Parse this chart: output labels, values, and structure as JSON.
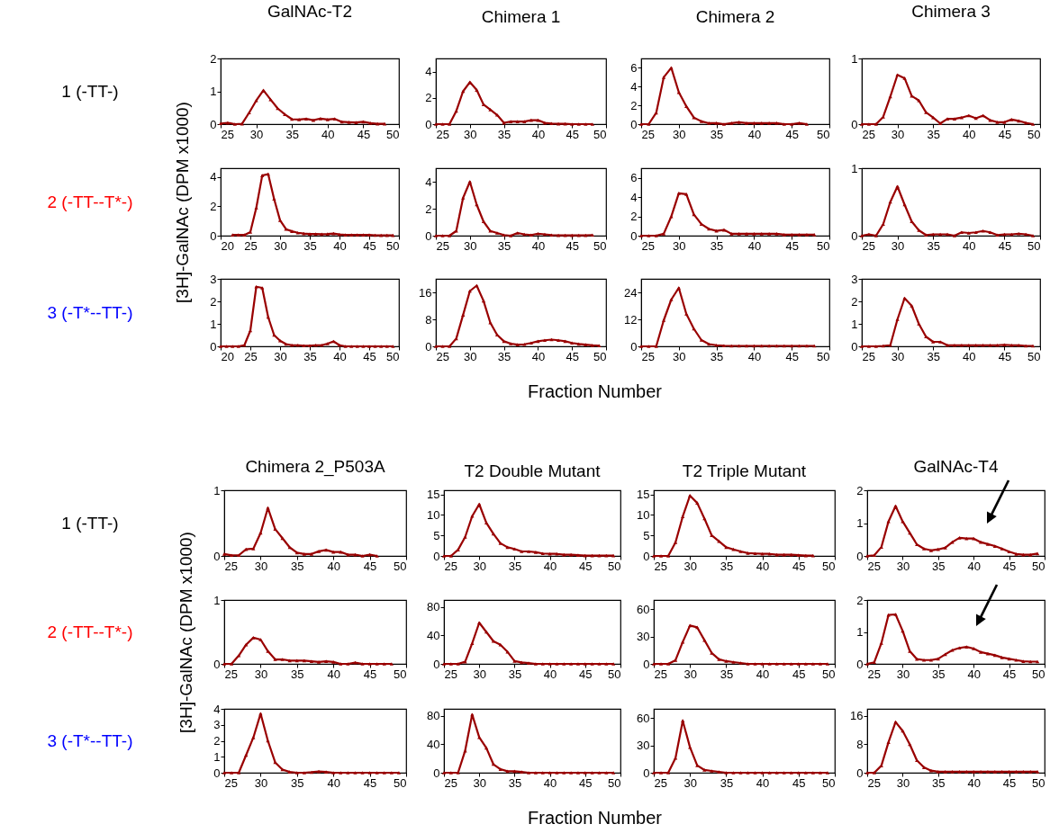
{
  "chart_data": [
    {
      "type": "line",
      "title": "GalNAc-T2",
      "annotations": [
        "1 (-TT-)"
      ],
      "x": [
        25,
        26,
        27,
        28,
        29,
        30,
        31,
        32,
        33,
        34,
        35,
        36,
        37,
        38,
        39,
        40,
        41,
        42,
        43,
        44,
        45,
        46,
        47,
        48
      ],
      "series": [
        {
          "color": "#990000",
          "values": [
            0.02,
            0.04,
            0,
            0.01,
            0.35,
            0.72,
            1.03,
            0.75,
            0.48,
            0.3,
            0.15,
            0.14,
            0.16,
            0.12,
            0.17,
            0.14,
            0.16,
            0.07,
            0.06,
            0.05,
            0.07,
            0.03,
            0.01,
            0.01
          ]
        }
      ],
      "xlim": [
        25,
        50
      ],
      "xticks": [
        25,
        30,
        35,
        40,
        45,
        50
      ],
      "ylim": [
        0,
        2
      ],
      "yticks": [
        0,
        1,
        2
      ],
      "marker": "triangle"
    },
    {
      "type": "line",
      "title": "Chimera 1",
      "x": [
        25,
        26,
        27,
        28,
        29,
        30,
        31,
        32,
        33,
        34,
        35,
        36,
        37,
        38,
        39,
        40,
        41,
        42,
        43,
        44,
        45,
        46,
        47,
        48
      ],
      "series": [
        {
          "color": "#990000",
          "values": [
            0,
            0,
            0,
            1,
            2.5,
            3.2,
            2.6,
            1.5,
            1.1,
            0.7,
            0.1,
            0.2,
            0.2,
            0.2,
            0.3,
            0.3,
            0.1,
            0.05,
            0.02,
            0.02,
            0,
            0,
            0,
            0
          ]
        }
      ],
      "xlim": [
        25,
        50
      ],
      "xticks": [
        25,
        30,
        35,
        40,
        45,
        50
      ],
      "ylim": [
        0,
        5
      ],
      "yticks": [
        0,
        2,
        4
      ],
      "marker": "triangle"
    },
    {
      "type": "line",
      "title": "Chimera 2",
      "x": [
        25,
        26,
        27,
        28,
        29,
        30,
        31,
        32,
        33,
        34,
        35,
        36,
        37,
        38,
        39,
        40,
        41,
        42,
        43,
        44,
        45,
        46,
        47
      ],
      "series": [
        {
          "color": "#990000",
          "values": [
            0,
            0,
            1.2,
            5,
            6,
            3.4,
            1.9,
            0.7,
            0.3,
            0.1,
            0.1,
            0,
            0.1,
            0.2,
            0.1,
            0.1,
            0.1,
            0.1,
            0.1,
            0,
            0,
            0.1,
            0
          ]
        }
      ],
      "xlim": [
        25,
        50
      ],
      "xticks": [
        25,
        30,
        35,
        40,
        45,
        50
      ],
      "ylim": [
        0,
        7
      ],
      "yticks": [
        0,
        2,
        4,
        6
      ],
      "marker": "triangle"
    },
    {
      "type": "line",
      "title": "Chimera 3",
      "x": [
        25,
        26,
        27,
        28,
        29,
        30,
        31,
        32,
        33,
        34,
        35,
        36,
        37,
        38,
        39,
        40,
        41,
        42,
        43,
        44,
        45,
        46,
        47,
        48,
        49
      ],
      "series": [
        {
          "color": "#990000",
          "values": [
            0,
            0,
            0,
            0.11,
            0.42,
            0.75,
            0.7,
            0.43,
            0.36,
            0.18,
            0.1,
            0.01,
            0.08,
            0.08,
            0.1,
            0.13,
            0.09,
            0.13,
            0.06,
            0.03,
            0.03,
            0.07,
            0.05,
            0.02,
            0
          ]
        }
      ],
      "xlim": [
        25,
        50
      ],
      "xticks": [
        25,
        30,
        35,
        40,
        45,
        50
      ],
      "ylim": [
        0,
        1
      ],
      "yticks": [
        0,
        1
      ],
      "marker": "triangle"
    },
    {
      "type": "line",
      "ylabel": "[3H]-GalNAc (DPM x1000)",
      "annotations": [
        "2 (-TT--T*-)"
      ],
      "x": [
        22,
        23,
        24,
        25,
        26,
        27,
        28,
        29,
        30,
        31,
        32,
        33,
        34,
        35,
        36,
        37,
        38,
        39,
        40,
        41,
        42,
        43,
        44,
        45,
        46,
        47,
        48,
        49
      ],
      "series": [
        {
          "color": "#990000",
          "values": [
            0.05,
            0.05,
            0.05,
            0.25,
            1.9,
            4.1,
            4.2,
            2.5,
            1.05,
            0.45,
            0.3,
            0.2,
            0.15,
            0.12,
            0.12,
            0.1,
            0.12,
            0.15,
            0.08,
            0.05,
            0.05,
            0.05,
            0.05,
            0.05,
            0.03,
            0.02,
            0.02,
            0.02
          ]
        }
      ],
      "xlim": [
        20,
        50
      ],
      "xticks": [
        20,
        25,
        30,
        35,
        40,
        45,
        50
      ],
      "ylim": [
        0,
        4.6
      ],
      "yticks": [
        0,
        2,
        4
      ],
      "marker": "triangle"
    },
    {
      "type": "line",
      "x": [
        25,
        26,
        27,
        28,
        29,
        30,
        31,
        32,
        33,
        34,
        35,
        36,
        37,
        38,
        39,
        40,
        41,
        42,
        43,
        44,
        45,
        46,
        47,
        48
      ],
      "series": [
        {
          "color": "#990000",
          "values": [
            0,
            0,
            0,
            0.35,
            2.8,
            4,
            2.3,
            1.05,
            0.35,
            0.2,
            0.05,
            0,
            0.2,
            0.1,
            0.05,
            0.15,
            0.1,
            0.05,
            0.03,
            0.02,
            0.02,
            0.02,
            0.03,
            0.05
          ]
        }
      ],
      "xlim": [
        25,
        50
      ],
      "xticks": [
        25,
        30,
        35,
        40,
        45,
        50
      ],
      "ylim": [
        0,
        5
      ],
      "yticks": [
        0,
        2,
        4
      ],
      "marker": "triangle"
    },
    {
      "type": "line",
      "x": [
        25,
        26,
        27,
        28,
        29,
        30,
        31,
        32,
        33,
        34,
        35,
        36,
        37,
        38,
        39,
        40,
        41,
        42,
        43,
        44,
        45,
        46,
        47,
        48
      ],
      "series": [
        {
          "color": "#990000",
          "values": [
            0,
            0,
            0,
            0.2,
            2,
            4.4,
            4.3,
            2.2,
            1.2,
            0.7,
            0.5,
            0.6,
            0.2,
            0.2,
            0.2,
            0.2,
            0.2,
            0.2,
            0.2,
            0.1,
            0.1,
            0.1,
            0.1,
            0.1
          ]
        }
      ],
      "xlim": [
        25,
        50
      ],
      "xticks": [
        25,
        30,
        35,
        40,
        45,
        50
      ],
      "ylim": [
        0,
        7
      ],
      "yticks": [
        0,
        2,
        4,
        6
      ],
      "marker": "triangle"
    },
    {
      "type": "line",
      "x": [
        25,
        26,
        27,
        28,
        29,
        30,
        31,
        32,
        33,
        34,
        35,
        36,
        37,
        38,
        39,
        40,
        41,
        42,
        43,
        44,
        45,
        46,
        47,
        48,
        49
      ],
      "series": [
        {
          "color": "#990000",
          "values": [
            0,
            0.02,
            0,
            0.17,
            0.5,
            0.73,
            0.46,
            0.21,
            0.08,
            0.01,
            0.02,
            0.02,
            0.02,
            0,
            0.05,
            0.04,
            0.05,
            0.07,
            0.05,
            0.01,
            0.02,
            0.02,
            0.03,
            0.02,
            0
          ]
        }
      ],
      "xlim": [
        25,
        50
      ],
      "xticks": [
        25,
        30,
        35,
        40,
        45,
        50
      ],
      "ylim": [
        0,
        1
      ],
      "yticks": [
        0,
        1
      ],
      "marker": "triangle"
    },
    {
      "type": "line",
      "annotations": [
        "3 (-T*--TT-)"
      ],
      "x": [
        20,
        21,
        22,
        23,
        24,
        25,
        26,
        27,
        28,
        29,
        30,
        31,
        32,
        33,
        34,
        35,
        36,
        37,
        38,
        39,
        40,
        41,
        42,
        43,
        44,
        45,
        46,
        47,
        48,
        49
      ],
      "series": [
        {
          "color": "#990000",
          "values": [
            0,
            0,
            0,
            0,
            0.05,
            0.7,
            2.65,
            2.6,
            1.3,
            0.5,
            0.25,
            0.1,
            0.05,
            0.05,
            0.03,
            0.03,
            0.05,
            0.05,
            0.12,
            0.22,
            0.05,
            0,
            0,
            0,
            0,
            0,
            0,
            0,
            0,
            0
          ]
        }
      ],
      "xlim": [
        20,
        50
      ],
      "xticks": [
        20,
        25,
        30,
        35,
        40,
        45,
        50
      ],
      "ylim": [
        0,
        3
      ],
      "yticks": [
        0,
        1,
        2,
        3
      ],
      "marker": "triangle"
    },
    {
      "type": "line",
      "xlabel": "Fraction Number",
      "x": [
        25,
        26,
        27,
        28,
        29,
        30,
        31,
        32,
        33,
        34,
        35,
        36,
        37,
        38,
        39,
        40,
        41,
        42,
        43,
        44,
        45,
        46,
        47,
        48,
        49
      ],
      "series": [
        {
          "color": "#990000",
          "values": [
            0,
            0,
            0,
            2.3,
            9.3,
            16.4,
            18,
            13.5,
            7,
            3.4,
            1.5,
            0.8,
            0.5,
            0.6,
            1,
            1.5,
            1.8,
            2,
            1.8,
            1.5,
            1,
            0.7,
            0.5,
            0.3,
            0.2
          ]
        }
      ],
      "xlim": [
        25,
        50
      ],
      "xticks": [
        25,
        30,
        35,
        40,
        45,
        50
      ],
      "ylim": [
        0,
        20
      ],
      "yticks": [
        0,
        8,
        16
      ],
      "marker": "triangle"
    },
    {
      "type": "line",
      "x": [
        25,
        26,
        27,
        28,
        29,
        30,
        31,
        32,
        33,
        34,
        35,
        36,
        37,
        38,
        39,
        40,
        41,
        42,
        43,
        44,
        45,
        46,
        47,
        48
      ],
      "series": [
        {
          "color": "#990000",
          "values": [
            0,
            0,
            0,
            11.6,
            20.8,
            26,
            14.4,
            7.8,
            2.8,
            1,
            0.5,
            0.3,
            0.2,
            0.2,
            0.2,
            0.2,
            0.2,
            0.2,
            0.2,
            0.2,
            0.2,
            0.2,
            0.2,
            0.2
          ]
        }
      ],
      "xlim": [
        25,
        50
      ],
      "xticks": [
        25,
        30,
        35,
        40,
        45,
        50
      ],
      "ylim": [
        0,
        30
      ],
      "yticks": [
        0,
        12,
        24
      ],
      "marker": "triangle"
    },
    {
      "type": "line",
      "x": [
        25,
        26,
        27,
        28,
        29,
        30,
        31,
        32,
        33,
        34,
        35,
        36,
        37,
        38,
        39,
        40,
        41,
        42,
        43,
        44,
        45,
        46,
        47,
        48,
        49
      ],
      "series": [
        {
          "color": "#990000",
          "values": [
            0,
            0,
            0,
            0.02,
            0.05,
            1.2,
            2.14,
            1.8,
            1,
            0.43,
            0.2,
            0.2,
            0.05,
            0.05,
            0.05,
            0.05,
            0.05,
            0.05,
            0.05,
            0.05,
            0.07,
            0.05,
            0.05,
            0.02,
            0.02
          ]
        }
      ],
      "xlim": [
        25,
        50
      ],
      "xticks": [
        25,
        30,
        35,
        40,
        45,
        50
      ],
      "ylim": [
        0,
        3
      ],
      "yticks": [
        0,
        1,
        2,
        3
      ],
      "marker": "triangle"
    },
    {
      "type": "line",
      "title": "Chimera 2_P503A",
      "annotations": [
        "1 (-TT-)"
      ],
      "x": [
        25,
        26,
        27,
        28,
        29,
        30,
        31,
        32,
        33,
        34,
        35,
        36,
        37,
        38,
        39,
        40,
        41,
        42,
        43,
        44,
        45,
        46
      ],
      "series": [
        {
          "color": "#990000",
          "values": [
            0.03,
            0.01,
            0.01,
            0.1,
            0.11,
            0.35,
            0.73,
            0.41,
            0.27,
            0.13,
            0.05,
            0.03,
            0.03,
            0.07,
            0.09,
            0.06,
            0.06,
            0.02,
            0.02,
            0,
            0.02,
            0
          ]
        }
      ],
      "xlim": [
        25,
        50
      ],
      "xticks": [
        25,
        30,
        35,
        40,
        45,
        50
      ],
      "ylim": [
        0,
        1
      ],
      "yticks": [
        0,
        1
      ],
      "marker": "triangle"
    },
    {
      "type": "line",
      "title": "T2 Double Mutant",
      "x": [
        25,
        26,
        27,
        28,
        29,
        30,
        31,
        32,
        33,
        34,
        35,
        36,
        37,
        38,
        39,
        40,
        41,
        42,
        43,
        44,
        45,
        46,
        47,
        48,
        49
      ],
      "series": [
        {
          "color": "#990000",
          "values": [
            0,
            0,
            1.5,
            4.6,
            9.7,
            12.6,
            8.1,
            5.4,
            3.1,
            2.1,
            1.7,
            1.1,
            1.1,
            0.9,
            0.6,
            0.5,
            0.5,
            0.3,
            0.3,
            0.2,
            0.1,
            0.1,
            0.1,
            0.1,
            0.1
          ]
        }
      ],
      "xlim": [
        25,
        50
      ],
      "xticks": [
        25,
        30,
        35,
        40,
        45,
        50
      ],
      "ylim": [
        0,
        16
      ],
      "yticks": [
        0,
        5,
        10,
        15
      ],
      "marker": "triangle"
    },
    {
      "type": "line",
      "title": "T2 Triple Mutant",
      "x": [
        25,
        26,
        27,
        28,
        29,
        30,
        31,
        32,
        33,
        34,
        35,
        36,
        37,
        38,
        39,
        40,
        41,
        42,
        43,
        44,
        45,
        46,
        47
      ],
      "series": [
        {
          "color": "#990000",
          "values": [
            0,
            0,
            0,
            3.3,
            9.6,
            14.7,
            12.9,
            9.1,
            5,
            3.6,
            2.1,
            1.6,
            1.1,
            0.7,
            0.6,
            0.5,
            0.5,
            0.3,
            0.3,
            0.3,
            0.2,
            0.1,
            0.1
          ]
        }
      ],
      "xlim": [
        25,
        50
      ],
      "xticks": [
        25,
        30,
        35,
        40,
        45,
        50
      ],
      "ylim": [
        0,
        16
      ],
      "yticks": [
        0,
        5,
        10,
        15
      ],
      "marker": "triangle"
    },
    {
      "type": "line",
      "title": "GalNAc-T4",
      "x": [
        25,
        26,
        27,
        28,
        29,
        30,
        31,
        32,
        33,
        34,
        35,
        36,
        37,
        38,
        39,
        40,
        41,
        42,
        43,
        44,
        45,
        46,
        47,
        48,
        49
      ],
      "series": [
        {
          "color": "#990000",
          "values": [
            0,
            0.02,
            0.27,
            1.05,
            1.52,
            1.05,
            0.7,
            0.35,
            0.22,
            0.17,
            0.2,
            0.25,
            0.42,
            0.55,
            0.53,
            0.53,
            0.42,
            0.36,
            0.3,
            0.22,
            0.13,
            0.06,
            0.04,
            0.04,
            0.07
          ]
        }
      ],
      "xlim": [
        25,
        50
      ],
      "xticks": [
        25,
        30,
        35,
        40,
        45,
        50
      ],
      "ylim": [
        0,
        2
      ],
      "yticks": [
        0,
        1,
        2
      ],
      "marker": "triangle"
    },
    {
      "type": "line",
      "ylabel": "[3H]-GalNAc (DPM x1000)",
      "annotations": [
        "2 (-TT--T*-)"
      ],
      "x": [
        25,
        26,
        27,
        28,
        29,
        30,
        31,
        32,
        33,
        34,
        35,
        36,
        37,
        38,
        39,
        40,
        41,
        42,
        43,
        44,
        45,
        46,
        47,
        48
      ],
      "series": [
        {
          "color": "#990000",
          "values": [
            0,
            0,
            0.13,
            0.3,
            0.41,
            0.38,
            0.2,
            0.07,
            0.07,
            0.05,
            0.05,
            0.05,
            0.04,
            0.03,
            0.04,
            0.03,
            0,
            0,
            0.02,
            0,
            0,
            0,
            0,
            0
          ]
        }
      ],
      "xlim": [
        25,
        50
      ],
      "xticks": [
        25,
        30,
        35,
        40,
        45,
        50
      ],
      "ylim": [
        0,
        1
      ],
      "yticks": [
        0,
        1
      ],
      "marker": "triangle"
    },
    {
      "type": "line",
      "x": [
        25,
        26,
        27,
        28,
        29,
        30,
        31,
        32,
        33,
        34,
        35,
        36,
        37,
        38,
        39,
        40,
        41,
        42,
        43,
        44,
        45,
        46,
        47,
        48,
        49
      ],
      "series": [
        {
          "color": "#990000",
          "values": [
            0,
            0,
            0,
            3,
            29,
            58,
            45,
            32,
            27,
            17,
            4,
            2,
            1,
            0,
            0,
            0,
            0,
            0,
            0,
            0,
            0,
            0,
            0,
            0,
            0
          ]
        }
      ],
      "xlim": [
        25,
        50
      ],
      "xticks": [
        25,
        30,
        35,
        40,
        45,
        50
      ],
      "ylim": [
        0,
        90
      ],
      "yticks": [
        0,
        40,
        80
      ],
      "marker": "triangle"
    },
    {
      "type": "line",
      "x": [
        25,
        26,
        27,
        28,
        29,
        30,
        31,
        32,
        33,
        34,
        35,
        36,
        37,
        38,
        39,
        40,
        41,
        42,
        43,
        44,
        45,
        46,
        47,
        48,
        49
      ],
      "series": [
        {
          "color": "#990000",
          "values": [
            0,
            0,
            0,
            4,
            24,
            42,
            40,
            26,
            12,
            5,
            3,
            2,
            1,
            0,
            0,
            0,
            0,
            0,
            0,
            0,
            0,
            0,
            0,
            0,
            0
          ]
        }
      ],
      "xlim": [
        25,
        50
      ],
      "xticks": [
        25,
        30,
        35,
        40,
        45,
        50
      ],
      "ylim": [
        0,
        70
      ],
      "yticks": [
        0,
        30,
        60
      ],
      "marker": "triangle"
    },
    {
      "type": "line",
      "x": [
        25,
        26,
        27,
        28,
        29,
        30,
        31,
        32,
        33,
        34,
        35,
        36,
        37,
        38,
        39,
        40,
        41,
        42,
        43,
        44,
        45,
        46,
        47,
        48,
        49
      ],
      "series": [
        {
          "color": "#990000",
          "values": [
            0,
            0.05,
            0.65,
            1.53,
            1.55,
            1.03,
            0.4,
            0.15,
            0.12,
            0.12,
            0.16,
            0.3,
            0.43,
            0.5,
            0.53,
            0.48,
            0.37,
            0.32,
            0.27,
            0.2,
            0.16,
            0.12,
            0.08,
            0.07,
            0.07
          ]
        }
      ],
      "xlim": [
        25,
        50
      ],
      "xticks": [
        25,
        30,
        35,
        40,
        45,
        50
      ],
      "ylim": [
        0,
        2
      ],
      "yticks": [
        0,
        1,
        2
      ],
      "marker": "triangle"
    },
    {
      "type": "line",
      "annotations": [
        "3 (-T*--TT-)"
      ],
      "x": [
        25,
        26,
        27,
        28,
        29,
        30,
        31,
        32,
        33,
        34,
        35,
        36,
        37,
        38,
        39,
        40,
        41,
        42,
        43,
        44,
        45,
        46,
        47,
        48,
        49
      ],
      "series": [
        {
          "color": "#990000",
          "values": [
            0,
            0,
            0,
            1.1,
            2.2,
            3.7,
            2,
            0.65,
            0.2,
            0.05,
            0,
            0,
            0.03,
            0.08,
            0.05,
            0,
            0,
            0,
            0,
            0,
            0,
            0,
            0,
            0,
            0
          ]
        }
      ],
      "xlim": [
        25,
        50
      ],
      "xticks": [
        25,
        30,
        35,
        40,
        45,
        50
      ],
      "ylim": [
        0,
        4
      ],
      "yticks": [
        0,
        1,
        2,
        3,
        4
      ],
      "marker": "triangle"
    },
    {
      "type": "line",
      "xlabel": "Fraction Number",
      "x": [
        25,
        26,
        27,
        28,
        29,
        30,
        31,
        32,
        33,
        34,
        35,
        36,
        37,
        38,
        39,
        40,
        41,
        42,
        43,
        44,
        45,
        46,
        47,
        48,
        49
      ],
      "series": [
        {
          "color": "#990000",
          "values": [
            0,
            0,
            0,
            31,
            82,
            50,
            35,
            12,
            5,
            2,
            2,
            1,
            0,
            0,
            0,
            0,
            0,
            0,
            0,
            0,
            0,
            0,
            0,
            0,
            0
          ]
        }
      ],
      "xlim": [
        25,
        50
      ],
      "xticks": [
        25,
        30,
        35,
        40,
        45,
        50
      ],
      "ylim": [
        0,
        90
      ],
      "yticks": [
        0,
        40,
        80
      ],
      "marker": "triangle"
    },
    {
      "type": "line",
      "x": [
        25,
        26,
        27,
        28,
        29,
        30,
        31,
        32,
        33,
        34,
        35,
        36,
        37,
        38,
        39,
        40,
        41,
        42,
        43,
        44,
        45,
        46,
        47,
        48,
        49
      ],
      "series": [
        {
          "color": "#990000",
          "values": [
            0,
            0,
            0,
            16,
            57,
            28,
            8,
            3,
            2,
            1,
            0,
            0,
            0,
            0,
            0,
            0,
            0,
            0,
            0,
            0,
            0,
            0,
            0,
            0,
            0
          ]
        }
      ],
      "xlim": [
        25,
        50
      ],
      "xticks": [
        25,
        30,
        35,
        40,
        45,
        50
      ],
      "ylim": [
        0,
        70
      ],
      "yticks": [
        0,
        30,
        60
      ],
      "marker": "triangle"
    },
    {
      "type": "line",
      "x": [
        25,
        26,
        27,
        28,
        29,
        30,
        31,
        32,
        33,
        34,
        35,
        36,
        37,
        38,
        39,
        40,
        41,
        42,
        43,
        44,
        45,
        46,
        47,
        48,
        49
      ],
      "series": [
        {
          "color": "#990000",
          "values": [
            0,
            0,
            2,
            8.6,
            14.3,
            11.8,
            8,
            3.5,
            1.5,
            0.6,
            0.3,
            0.3,
            0.3,
            0.3,
            0.3,
            0.3,
            0.3,
            0.3,
            0.3,
            0.3,
            0.3,
            0.3,
            0.3,
            0.3,
            0.3
          ]
        }
      ],
      "xlim": [
        25,
        50
      ],
      "xticks": [
        25,
        30,
        35,
        40,
        45,
        50
      ],
      "ylim": [
        0,
        18
      ],
      "yticks": [
        0,
        8,
        16
      ],
      "marker": "triangle"
    }
  ]
}
